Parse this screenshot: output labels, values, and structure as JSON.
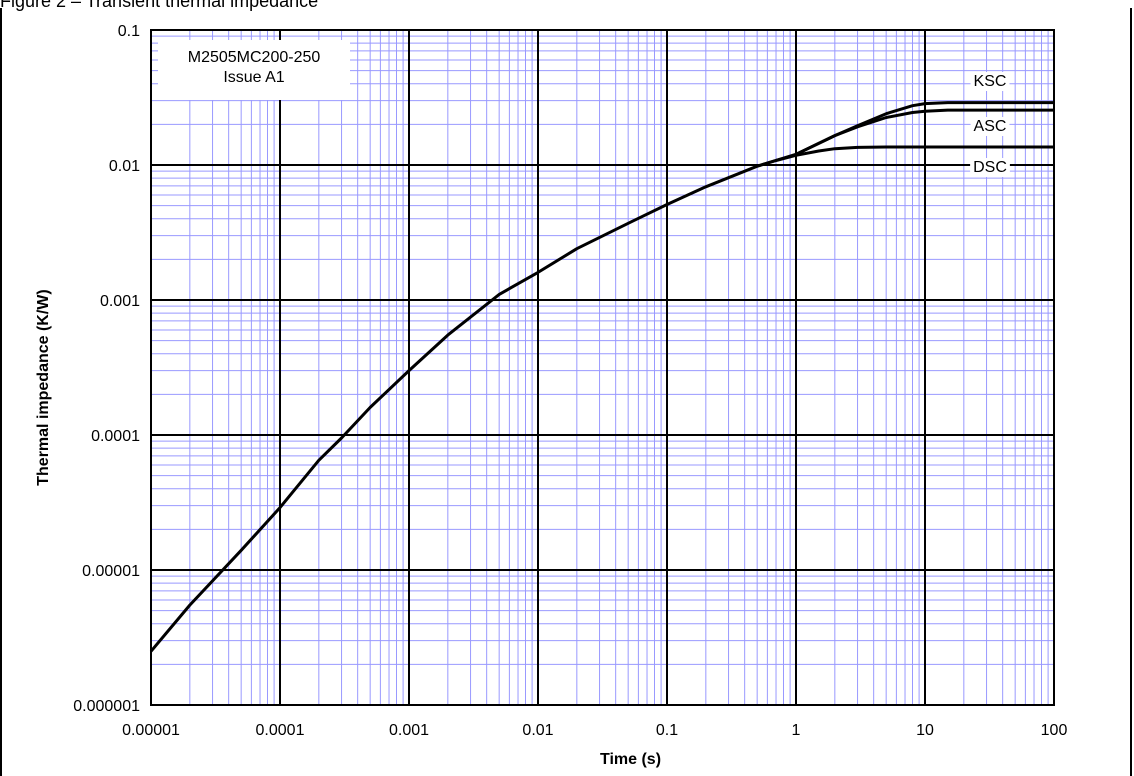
{
  "figure": {
    "caption": "Figure 2 – Transient thermal impedance"
  },
  "chart_data": {
    "type": "line",
    "title": "",
    "xlabel": "Time (s)",
    "ylabel": "Thermal impedance (K/W)",
    "xscale": "log",
    "yscale": "log",
    "xlim": [
      1e-05,
      100
    ],
    "ylim": [
      1e-06,
      0.1
    ],
    "x_ticks": [
      "0.00001",
      "0.0001",
      "0.001",
      "0.01",
      "0.1",
      "1",
      "10",
      "100"
    ],
    "y_ticks": [
      "0.000001",
      "0.00001",
      "0.0001",
      "0.001",
      "0.01",
      "0.1"
    ],
    "grid": true,
    "grid_major_color": "#000000",
    "grid_minor_color": "#9999ff",
    "line_color": "#000000",
    "annotation": [
      "M2505MC200-250",
      "Issue A1"
    ],
    "shared_segment": {
      "x": [
        1e-05,
        2e-05,
        5e-05,
        0.0001,
        0.0002,
        0.0003,
        0.0005,
        0.001,
        0.002,
        0.005,
        0.01,
        0.02,
        0.05,
        0.1,
        0.2,
        0.5,
        1
      ],
      "y": [
        2.5e-06,
        5.5e-06,
        1.4e-05,
        2.9e-05,
        6.5e-05,
        9.5e-05,
        0.00016,
        0.0003,
        0.00055,
        0.0011,
        0.0016,
        0.0024,
        0.0037,
        0.0051,
        0.0069,
        0.0098,
        0.012
      ]
    },
    "series": [
      {
        "name": "KSC",
        "x": [
          1,
          2,
          3,
          5,
          8,
          10,
          15,
          20,
          50,
          100
        ],
        "y": [
          0.012,
          0.0165,
          0.0195,
          0.024,
          0.0275,
          0.0285,
          0.029,
          0.029,
          0.029,
          0.029
        ]
      },
      {
        "name": "ASC",
        "x": [
          1,
          2,
          3,
          5,
          8,
          10,
          15,
          20,
          50,
          100
        ],
        "y": [
          0.012,
          0.0165,
          0.0192,
          0.0225,
          0.0245,
          0.025,
          0.0255,
          0.0255,
          0.0255,
          0.0255
        ]
      },
      {
        "name": "DSC",
        "x": [
          0.5,
          0.7,
          1,
          1.5,
          2,
          3,
          5,
          10,
          20,
          100
        ],
        "y": [
          0.0098,
          0.0108,
          0.0118,
          0.0127,
          0.0132,
          0.0135,
          0.0136,
          0.0136,
          0.0136,
          0.0136
        ]
      }
    ]
  }
}
